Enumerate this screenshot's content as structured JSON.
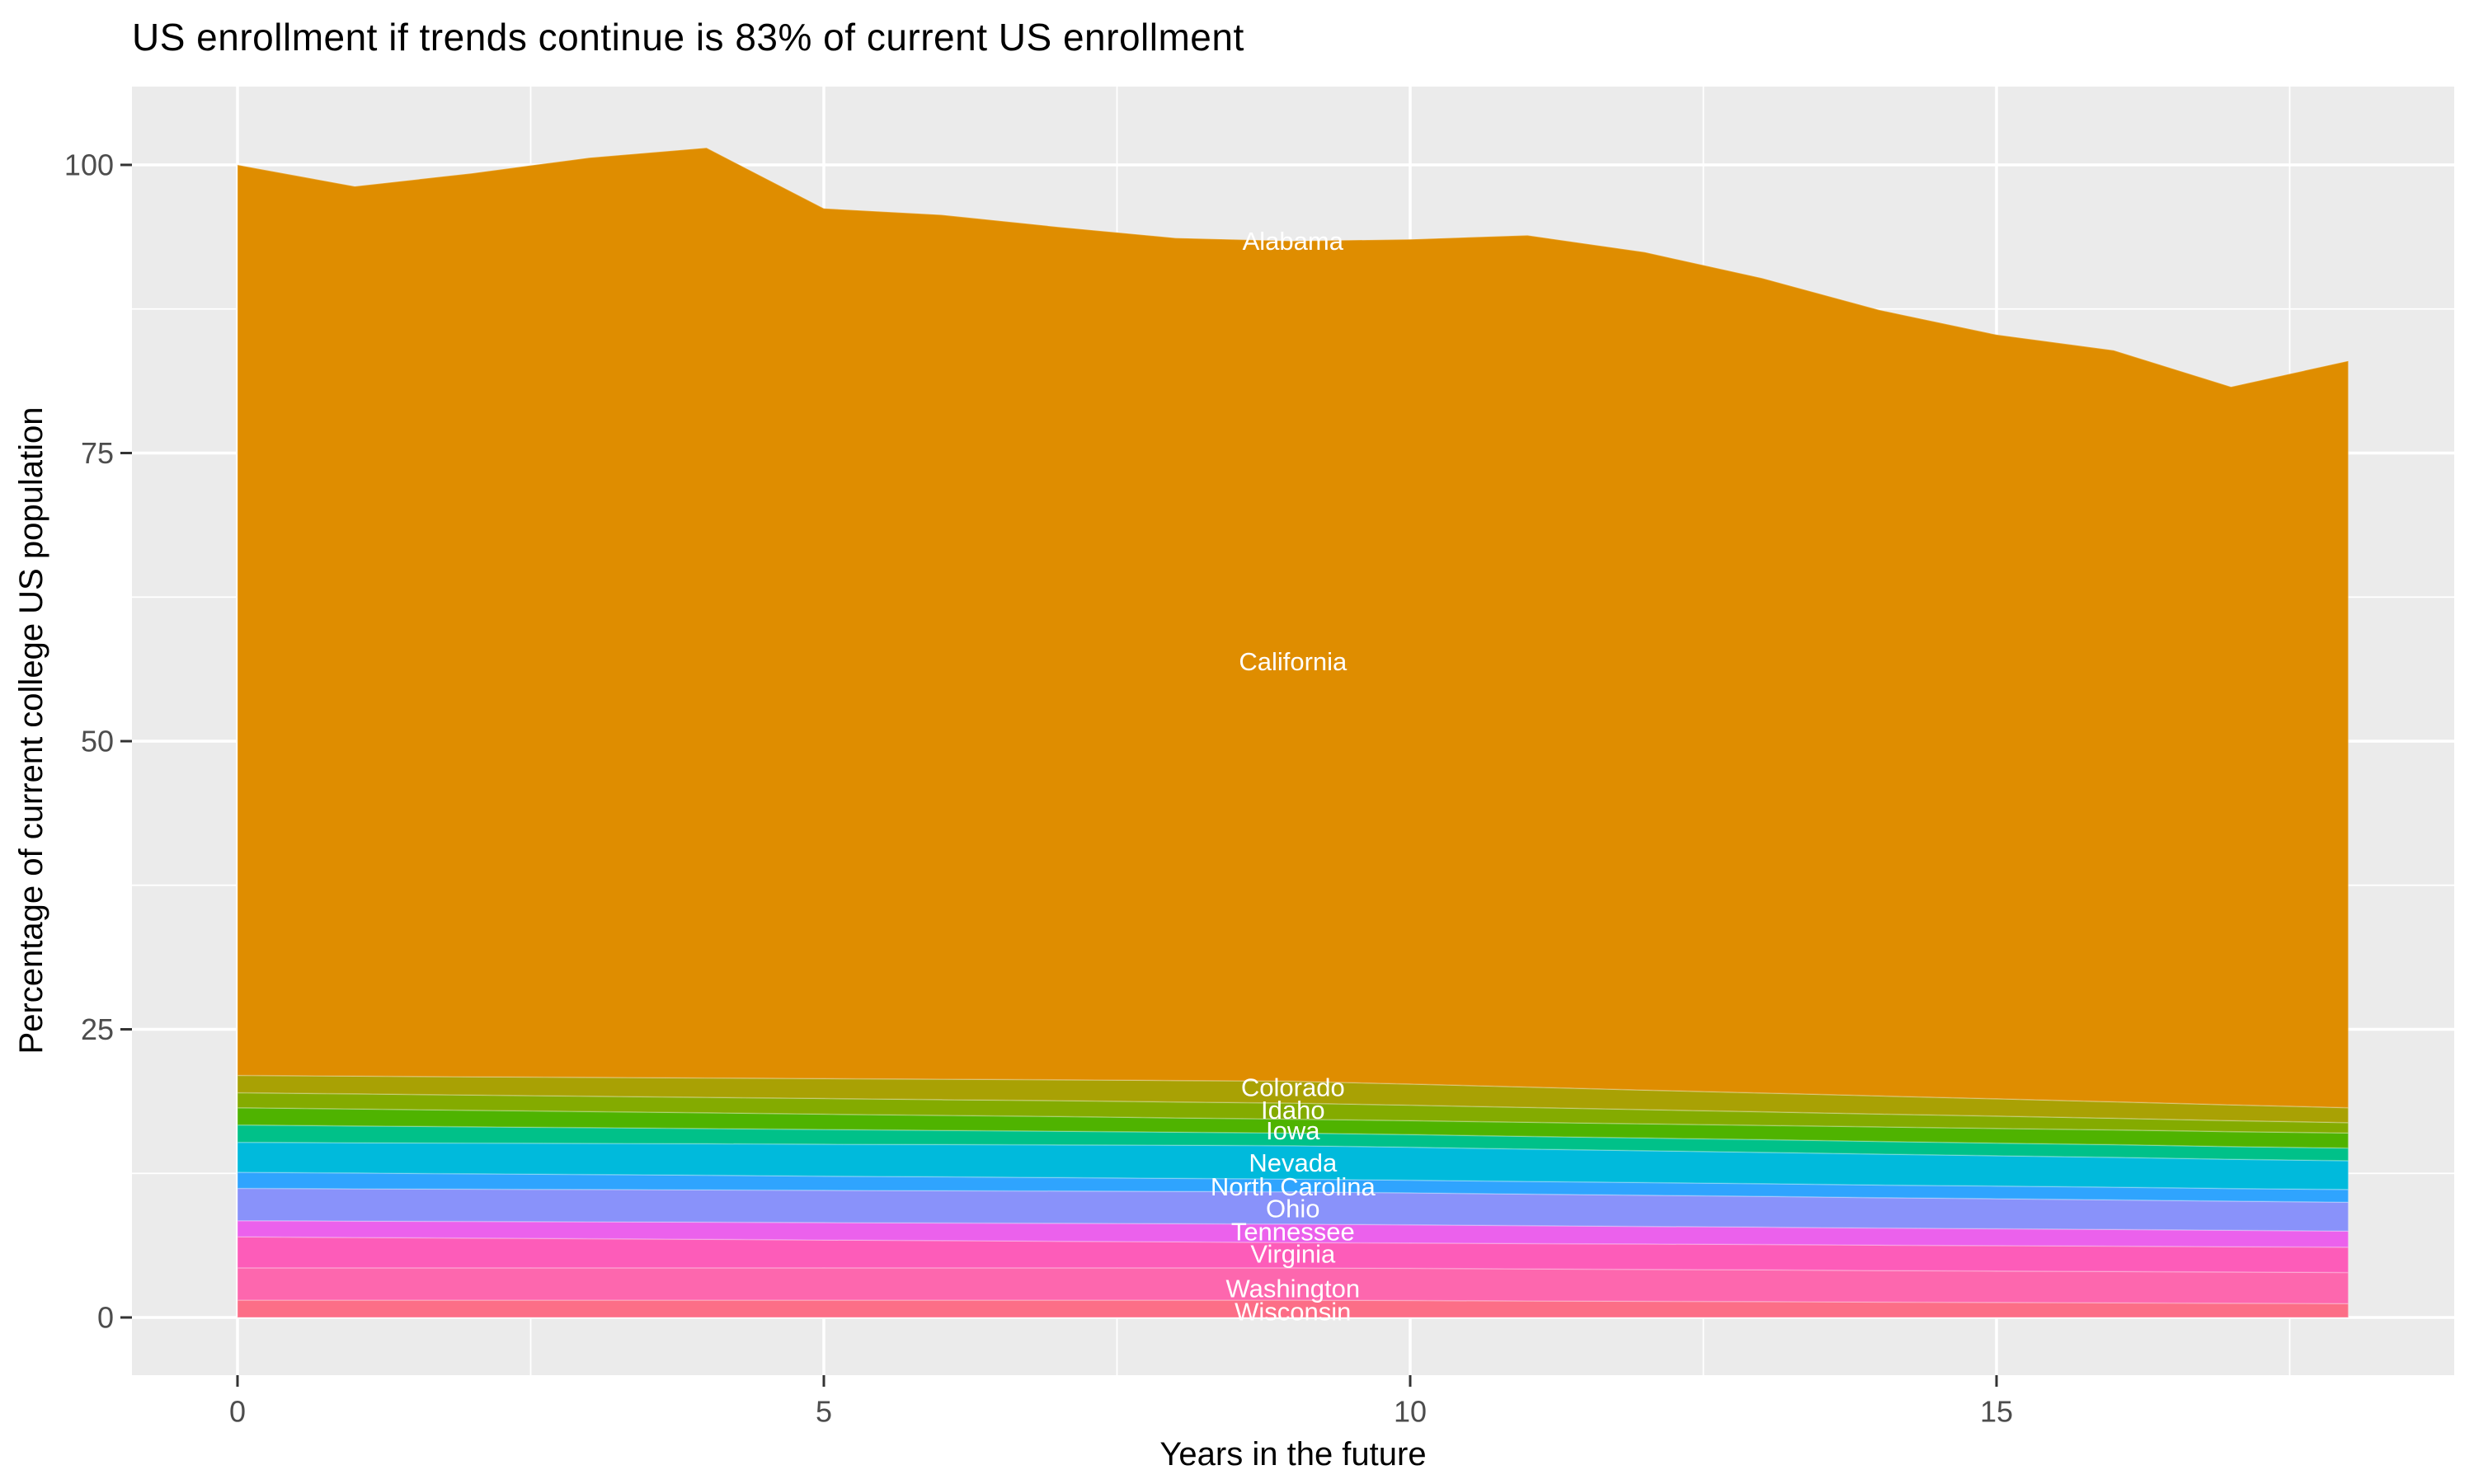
{
  "title": "US enrollment if trends continue is 83% of current US enrollment",
  "x_axis": {
    "label": "Years in the future",
    "ticks": [
      0,
      5,
      10,
      15
    ],
    "minor_ticks": [
      2.5,
      7.5,
      12.5,
      17.5
    ],
    "range": [
      -0.9,
      18.9
    ]
  },
  "y_axis": {
    "label": "Percentage of current college US population",
    "ticks": [
      0,
      25,
      50,
      75,
      100
    ],
    "minor_ticks": [
      12.5,
      37.5,
      62.5,
      87.5
    ],
    "range": [
      -5,
      106.5
    ]
  },
  "style": {
    "panel_bg": "#EBEBEB",
    "grid_color": "#FFFFFF",
    "tick_label_color": "#4D4D4D",
    "tick_mark_color": "#333333",
    "band_label_color": "#FFFFFF"
  },
  "chart_data": {
    "type": "area",
    "stacked": true,
    "title": "US enrollment if trends continue is 83% of current US enrollment",
    "xlabel": "Years in the future",
    "ylabel": "Percentage of current college US population",
    "xlim": [
      0,
      18
    ],
    "ylim": [
      0,
      101.5
    ],
    "grid": true,
    "legend": false,
    "x": [
      0,
      1,
      2,
      3,
      4,
      5,
      6,
      7,
      8,
      9,
      10,
      11,
      12,
      13,
      14,
      15,
      16,
      17,
      18
    ],
    "series": [
      {
        "name": "Alabama",
        "color": "#F8766D",
        "values": [
          0,
          0,
          0,
          0,
          0,
          0,
          0,
          0,
          0,
          0,
          0,
          0,
          0,
          0,
          0,
          0,
          0,
          0,
          0
        ],
        "label": {
          "text": "Alabama",
          "t": 9,
          "v": 93.4
        }
      },
      {
        "name": "California",
        "color": "#DF8D00",
        "values": [
          79.0,
          77.2,
          78.4,
          79.8,
          80.7,
          75.5,
          75.0,
          74.0,
          73.1,
          72.9,
          73.3,
          73.9,
          72.7,
          70.7,
          68.2,
          66.3,
          65.2,
          62.3,
          64.8
        ],
        "label": {
          "text": "California",
          "t": 9,
          "v": 56.9
        }
      },
      {
        "name": "Colorado",
        "color": "#A9A104",
        "values": [
          1.5,
          1.54,
          1.59,
          1.63,
          1.68,
          1.72,
          1.77,
          1.81,
          1.86,
          1.9,
          1.83,
          1.77,
          1.7,
          1.63,
          1.57,
          1.5,
          1.43,
          1.37,
          1.3
        ],
        "label": {
          "text": "Colorado",
          "t": 9,
          "v": 19.95
        }
      },
      {
        "name": "Idaho",
        "color": "#84AB00",
        "values": [
          1.3,
          1.31,
          1.32,
          1.33,
          1.34,
          1.36,
          1.37,
          1.38,
          1.39,
          1.4,
          1.34,
          1.29,
          1.23,
          1.18,
          1.12,
          1.07,
          1.01,
          0.96,
          0.9
        ],
        "label": {
          "text": "Idaho",
          "t": 9,
          "v": 18.0
        }
      },
      {
        "name": "Iowa",
        "color": "#4FB300",
        "values": [
          1.5,
          1.47,
          1.43,
          1.4,
          1.37,
          1.33,
          1.3,
          1.27,
          1.23,
          1.2,
          1.21,
          1.22,
          1.23,
          1.24,
          1.26,
          1.27,
          1.28,
          1.29,
          1.3
        ],
        "label": {
          "text": "Iowa",
          "t": 9,
          "v": 16.2
        }
      },
      {
        "name": "",
        "color": "#00C189",
        "values": [
          1.5,
          1.46,
          1.41,
          1.37,
          1.32,
          1.28,
          1.23,
          1.19,
          1.14,
          1.1,
          1.1,
          1.1,
          1.1,
          1.1,
          1.1,
          1.1,
          1.1,
          1.1,
          1.1
        ],
        "label": null
      },
      {
        "name": "Nevada",
        "color": "#00BADC",
        "values": [
          2.6,
          2.63,
          2.67,
          2.7,
          2.73,
          2.77,
          2.8,
          2.83,
          2.87,
          2.9,
          2.86,
          2.81,
          2.77,
          2.72,
          2.68,
          2.63,
          2.59,
          2.54,
          2.5
        ],
        "label": {
          "text": "Nevada",
          "t": 9,
          "v": 13.4
        }
      },
      {
        "name": "North Carolina",
        "color": "#2FA4FE",
        "values": [
          1.4,
          1.37,
          1.33,
          1.3,
          1.27,
          1.23,
          1.2,
          1.17,
          1.13,
          1.1,
          1.1,
          1.1,
          1.1,
          1.1,
          1.1,
          1.1,
          1.1,
          1.1,
          1.1
        ],
        "label": {
          "text": "North Carolina",
          "t": 9,
          "v": 11.35
        }
      },
      {
        "name": "Ohio",
        "color": "#8992FA",
        "values": [
          2.8,
          2.8,
          2.8,
          2.8,
          2.8,
          2.8,
          2.8,
          2.8,
          2.8,
          2.8,
          2.77,
          2.73,
          2.7,
          2.67,
          2.63,
          2.6,
          2.57,
          2.53,
          2.5
        ],
        "label": {
          "text": "Ohio",
          "t": 9,
          "v": 9.45
        }
      },
      {
        "name": "Tennessee",
        "color": "#EB61EC",
        "values": [
          1.4,
          1.42,
          1.44,
          1.47,
          1.49,
          1.51,
          1.53,
          1.56,
          1.58,
          1.6,
          1.58,
          1.56,
          1.53,
          1.51,
          1.49,
          1.47,
          1.44,
          1.42,
          1.4
        ],
        "label": {
          "text": "Tennessee",
          "t": 9,
          "v": 7.45
        }
      },
      {
        "name": "Virginia",
        "color": "#FD5CB9",
        "values": [
          2.7,
          2.64,
          2.59,
          2.53,
          2.48,
          2.42,
          2.37,
          2.31,
          2.26,
          2.2,
          2.2,
          2.2,
          2.2,
          2.2,
          2.2,
          2.2,
          2.2,
          2.2,
          2.2
        ],
        "label": {
          "text": "Virginia",
          "t": 9,
          "v": 5.5
        }
      },
      {
        "name": "Washington",
        "color": "#FD67AE",
        "values": [
          2.8,
          2.8,
          2.8,
          2.8,
          2.8,
          2.8,
          2.8,
          2.8,
          2.8,
          2.8,
          2.79,
          2.78,
          2.77,
          2.76,
          2.74,
          2.73,
          2.72,
          2.71,
          2.7
        ],
        "label": {
          "text": "Washington",
          "t": 9,
          "v": 2.5
        }
      },
      {
        "name": "Wisconsin",
        "color": "#FC6E87",
        "values": [
          1.5,
          1.5,
          1.5,
          1.5,
          1.5,
          1.5,
          1.5,
          1.5,
          1.5,
          1.5,
          1.47,
          1.43,
          1.4,
          1.37,
          1.33,
          1.3,
          1.27,
          1.23,
          1.2
        ],
        "label": {
          "text": "Wisconsin",
          "t": 9,
          "v": 0.5
        }
      }
    ]
  }
}
